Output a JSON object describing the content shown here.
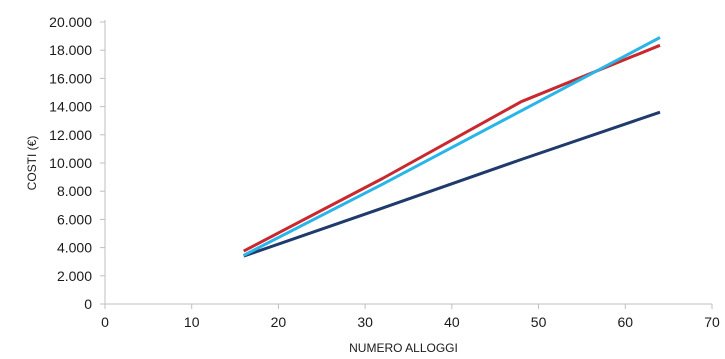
{
  "chart_data": {
    "type": "line",
    "xlabel": "NUMERO ALLOGGI",
    "ylabel": "COSTI (€)",
    "xlim": [
      0,
      70
    ],
    "ylim": [
      0,
      20000
    ],
    "x_ticks": [
      0,
      10,
      20,
      30,
      40,
      50,
      60,
      70
    ],
    "x_tick_labels": [
      "0",
      "10",
      "20",
      "30",
      "40",
      "50",
      "60",
      "70"
    ],
    "y_ticks": [
      0,
      2000,
      4000,
      6000,
      8000,
      10000,
      12000,
      14000,
      16000,
      18000,
      20000
    ],
    "y_tick_labels": [
      "0",
      "2.000",
      "4.000",
      "6.000",
      "8.000",
      "10.000",
      "12.000",
      "14.000",
      "16.000",
      "18.000",
      "20.000"
    ],
    "grid": false,
    "legend": "none",
    "series": [
      {
        "color": "#1f3a6b",
        "points": [
          [
            16,
            3400
          ],
          [
            32,
            6800
          ],
          [
            48,
            10250
          ],
          [
            64,
            13600
          ]
        ]
      },
      {
        "color": "#c8282e",
        "points": [
          [
            16,
            3750
          ],
          [
            32,
            8900
          ],
          [
            48,
            14350
          ],
          [
            64,
            18350
          ]
        ]
      },
      {
        "color": "#29b5e8",
        "points": [
          [
            16,
            3450
          ],
          [
            32,
            8500
          ],
          [
            48,
            13700
          ],
          [
            64,
            18900
          ]
        ]
      }
    ]
  }
}
